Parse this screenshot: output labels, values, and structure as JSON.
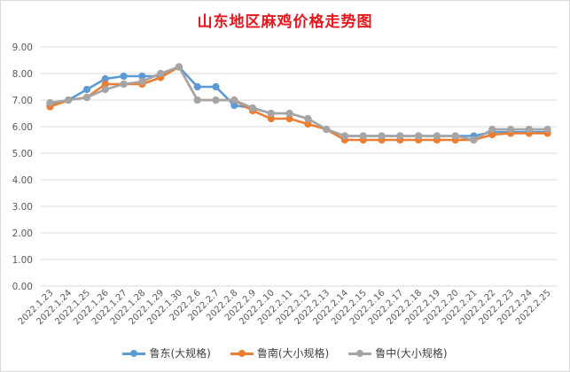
{
  "chart_data": {
    "type": "line",
    "title": "山东地区麻鸡价格走势图",
    "categories": [
      "2022.1.23",
      "2022.1.24",
      "2022.1.25",
      "2022.1.26",
      "2022.1.27",
      "2022.1.28",
      "2022.1.29",
      "2022.1.30",
      "2022.2.6",
      "2022.2.7",
      "2022.2.8",
      "2022.2.9",
      "2022.2.10",
      "2022.2.11",
      "2022.2.12",
      "2022.2.13",
      "2022.2.14",
      "2022.2.15",
      "2022.2.16",
      "2022.2.17",
      "2022.2.18",
      "2022.2.19",
      "2022.2.20",
      "2022.2.21",
      "2022.2.22",
      "2022.2.23",
      "2022.2.24",
      "2022.2.25"
    ],
    "ylim": [
      0,
      9
    ],
    "yticks": [
      "0.00",
      "1.00",
      "2.00",
      "3.00",
      "4.00",
      "5.00",
      "6.00",
      "7.00",
      "8.00",
      "9.00"
    ],
    "grid": true,
    "legend_position": "bottom",
    "series": [
      {
        "name": "鲁东(大规格)",
        "color": "#5b9bd5",
        "values": [
          6.8,
          7.0,
          7.4,
          7.8,
          7.9,
          7.9,
          7.9,
          8.25,
          7.5,
          7.5,
          6.8,
          6.7,
          6.5,
          6.5,
          6.3,
          5.9,
          5.65,
          5.65,
          5.65,
          5.65,
          5.65,
          5.65,
          5.65,
          5.65,
          5.8,
          5.8,
          5.8,
          5.8
        ]
      },
      {
        "name": "鲁南(大小规格)",
        "color": "#ed7d31",
        "values": [
          6.75,
          7.0,
          7.1,
          7.6,
          7.6,
          7.6,
          7.85,
          8.25,
          7.0,
          7.0,
          7.0,
          6.6,
          6.3,
          6.3,
          6.1,
          5.9,
          5.5,
          5.5,
          5.5,
          5.5,
          5.5,
          5.5,
          5.5,
          5.5,
          5.7,
          5.75,
          5.75,
          5.75
        ]
      },
      {
        "name": "鲁中(大小规格)",
        "color": "#a5a5a5",
        "values": [
          6.9,
          7.0,
          7.1,
          7.4,
          7.6,
          7.7,
          8.0,
          8.25,
          7.0,
          7.0,
          7.0,
          6.7,
          6.5,
          6.5,
          6.3,
          5.9,
          5.65,
          5.65,
          5.65,
          5.65,
          5.65,
          5.65,
          5.65,
          5.5,
          5.9,
          5.9,
          5.9,
          5.9
        ]
      }
    ]
  }
}
